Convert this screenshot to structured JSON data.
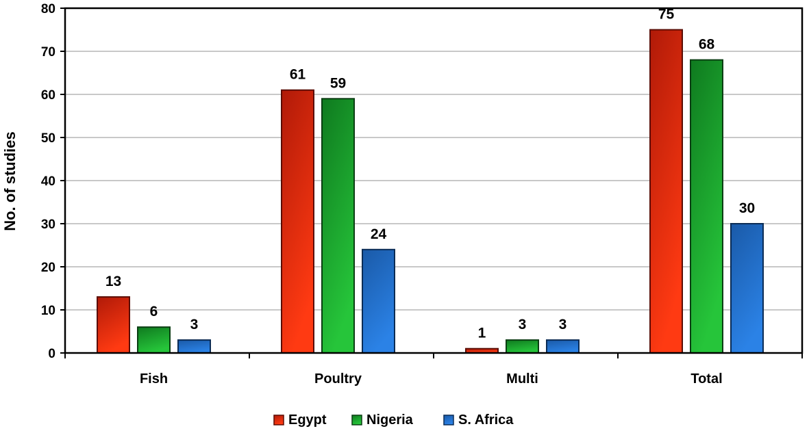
{
  "chart_data": {
    "type": "bar",
    "title": "",
    "xlabel": "",
    "ylabel": "No. of studies",
    "ylim": [
      0,
      80
    ],
    "yticks": [
      0,
      10,
      20,
      30,
      40,
      50,
      60,
      70,
      80
    ],
    "categories": [
      "Fish",
      "Poultry",
      "Multi",
      "Total"
    ],
    "series": [
      {
        "name": "Egypt",
        "values": [
          13,
          61,
          1,
          75
        ],
        "color_top": "#b01a08",
        "color_bottom": "#ff3a12",
        "stroke": "#5a0c04"
      },
      {
        "name": "Nigeria",
        "values": [
          6,
          59,
          3,
          68
        ],
        "color_top": "#0f7a1f",
        "color_bottom": "#26c53a",
        "stroke": "#0a3d12"
      },
      {
        "name": "S. Africa",
        "values": [
          3,
          24,
          3,
          30
        ],
        "color_top": "#1a5aa8",
        "color_bottom": "#2b82e6",
        "stroke": "#0b2c55"
      }
    ],
    "grid": true,
    "gridlines": "horizontal",
    "legend_position": "bottom-center",
    "data_labels": true
  }
}
